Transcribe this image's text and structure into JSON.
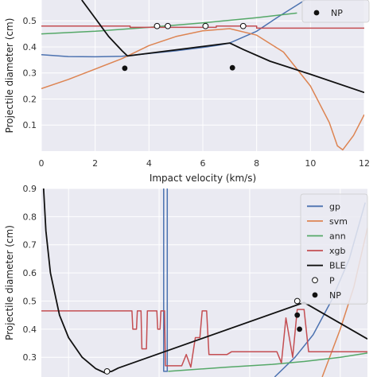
{
  "chart_data": [
    {
      "type": "line",
      "title": "",
      "xlabel": "Impact velocity (km/s)",
      "ylabel": "Projectile diameter (cm)",
      "xlim": [
        0,
        12
      ],
      "ylim": [
        0.0,
        0.58
      ],
      "xticks": [
        "0",
        "2",
        "4",
        "6",
        "8",
        "10",
        "12"
      ],
      "yticks": [
        "0.1",
        "0.2",
        "0.3",
        "0.4",
        "0.5"
      ],
      "grid": true,
      "background": "#eaeaf2",
      "legend_position": "top-right",
      "legend": [
        {
          "label": "NP",
          "marker": "filled-circle"
        }
      ],
      "series": [
        {
          "key": "gp",
          "color": "#4c72b0",
          "points": [
            [
              0,
              0.37
            ],
            [
              1,
              0.363
            ],
            [
              2,
              0.362
            ],
            [
              3,
              0.364
            ],
            [
              4,
              0.375
            ],
            [
              5,
              0.385
            ],
            [
              6,
              0.398
            ],
            [
              6.5,
              0.405
            ],
            [
              7,
              0.415
            ],
            [
              8,
              0.46
            ],
            [
              8.8,
              0.515
            ],
            [
              9.8,
              0.58
            ]
          ]
        },
        {
          "key": "svm",
          "color": "#dd8452",
          "points": [
            [
              0,
              0.24
            ],
            [
              1,
              0.275
            ],
            [
              2,
              0.315
            ],
            [
              3,
              0.355
            ],
            [
              4,
              0.405
            ],
            [
              5,
              0.44
            ],
            [
              6,
              0.462
            ],
            [
              7,
              0.47
            ],
            [
              8,
              0.445
            ],
            [
              9,
              0.38
            ],
            [
              10,
              0.25
            ],
            [
              10.7,
              0.11
            ],
            [
              11,
              0.02
            ],
            [
              11.2,
              0.005
            ],
            [
              11.6,
              0.06
            ],
            [
              12,
              0.14
            ]
          ]
        },
        {
          "key": "ann",
          "color": "#55a868",
          "points": [
            [
              0,
              0.45
            ],
            [
              2,
              0.46
            ],
            [
              4,
              0.475
            ],
            [
              6,
              0.492
            ],
            [
              8,
              0.512
            ],
            [
              9.5,
              0.53
            ]
          ]
        },
        {
          "key": "xgb",
          "color": "#c44e52",
          "points": [
            [
              0,
              0.48
            ],
            [
              3.3,
              0.48
            ],
            [
              3.3,
              0.475
            ],
            [
              6.5,
              0.475
            ],
            [
              6.5,
              0.48
            ],
            [
              8,
              0.48
            ],
            [
              8,
              0.472
            ],
            [
              12,
              0.472
            ]
          ]
        },
        {
          "key": "ble",
          "color": "#111111",
          "points": [
            [
              1.5,
              0.58
            ],
            [
              2,
              0.51
            ],
            [
              2.5,
              0.44
            ],
            [
              3,
              0.385
            ],
            [
              3.2,
              0.365
            ],
            [
              7,
              0.415
            ],
            [
              7.5,
              0.39
            ],
            [
              8.5,
              0.345
            ],
            [
              10,
              0.295
            ],
            [
              12,
              0.225
            ]
          ]
        }
      ],
      "markers": {
        "P": [
          [
            4.3,
            0.48
          ],
          [
            4.7,
            0.48
          ],
          [
            6.1,
            0.48
          ],
          [
            7.5,
            0.48
          ]
        ],
        "NP": [
          [
            3.1,
            0.318
          ],
          [
            7.1,
            0.32
          ]
        ]
      }
    },
    {
      "type": "line",
      "title": "",
      "xlabel": "",
      "ylabel": "Projectile diameter (cm)",
      "xlim": [
        1.4,
        8.6
      ],
      "ylim": [
        0.23,
        0.9
      ],
      "xticks": [],
      "yticks": [
        "0.3",
        "0.4",
        "0.5",
        "0.6",
        "0.7",
        "0.8",
        "0.9"
      ],
      "grid": true,
      "background": "#eaeaf2",
      "legend_position": "top-right",
      "legend": [
        {
          "label": "gp",
          "color": "#4c72b0",
          "marker": "line"
        },
        {
          "label": "svm",
          "color": "#dd8452",
          "marker": "line"
        },
        {
          "label": "ann",
          "color": "#55a868",
          "marker": "line"
        },
        {
          "label": "xgb",
          "color": "#c44e52",
          "marker": "line"
        },
        {
          "label": "BLE",
          "color": "#111111",
          "marker": "line"
        },
        {
          "label": "P",
          "marker": "open-circle"
        },
        {
          "label": "NP",
          "marker": "filled-circle"
        }
      ],
      "series": [
        {
          "key": "gp",
          "color": "#4c72b0",
          "points": [
            [
              4.1,
              0.9
            ],
            [
              4.1,
              0.25
            ],
            [
              4.18,
              0.25
            ],
            [
              4.18,
              0.9
            ]
          ]
        },
        {
          "key": "gp",
          "color": "#4c72b0",
          "points": [
            [
              6.55,
              0.23
            ],
            [
              7.0,
              0.3
            ],
            [
              7.4,
              0.38
            ],
            [
              7.8,
              0.5
            ],
            [
              8.2,
              0.65
            ],
            [
              8.55,
              0.85
            ]
          ]
        },
        {
          "key": "svm",
          "color": "#dd8452",
          "points": [
            [
              7.6,
              0.23
            ],
            [
              8.0,
              0.4
            ],
            [
              8.3,
              0.55
            ],
            [
              8.6,
              0.76
            ]
          ]
        },
        {
          "key": "ann",
          "color": "#55a868",
          "points": [
            [
              4.2,
              0.25
            ],
            [
              5.5,
              0.265
            ],
            [
              6.5,
              0.275
            ],
            [
              7.2,
              0.285
            ],
            [
              8.0,
              0.3
            ],
            [
              8.6,
              0.315
            ]
          ]
        },
        {
          "key": "xgb",
          "color": "#c44e52",
          "points": [
            [
              1.4,
              0.465
            ],
            [
              3.4,
              0.465
            ],
            [
              3.42,
              0.4
            ],
            [
              3.5,
              0.4
            ],
            [
              3.52,
              0.465
            ],
            [
              3.6,
              0.465
            ],
            [
              3.62,
              0.33
            ],
            [
              3.72,
              0.33
            ],
            [
              3.74,
              0.465
            ],
            [
              3.95,
              0.465
            ],
            [
              3.97,
              0.4
            ],
            [
              4.02,
              0.4
            ],
            [
              4.04,
              0.465
            ],
            [
              4.12,
              0.465
            ],
            [
              4.14,
              0.27
            ],
            [
              4.5,
              0.27
            ],
            [
              4.6,
              0.31
            ],
            [
              4.7,
              0.265
            ],
            [
              4.8,
              0.37
            ],
            [
              4.9,
              0.37
            ],
            [
              4.95,
              0.465
            ],
            [
              5.05,
              0.465
            ],
            [
              5.1,
              0.31
            ],
            [
              5.5,
              0.31
            ],
            [
              5.6,
              0.32
            ],
            [
              6.6,
              0.32
            ],
            [
              6.7,
              0.28
            ],
            [
              6.8,
              0.44
            ],
            [
              6.95,
              0.3
            ],
            [
              7.05,
              0.47
            ],
            [
              7.2,
              0.47
            ],
            [
              7.3,
              0.32
            ],
            [
              8.6,
              0.32
            ]
          ]
        },
        {
          "key": "ble",
          "color": "#111111",
          "points": [
            [
              1.45,
              0.9
            ],
            [
              1.5,
              0.75
            ],
            [
              1.6,
              0.6
            ],
            [
              1.8,
              0.45
            ],
            [
              2.0,
              0.37
            ],
            [
              2.3,
              0.3
            ],
            [
              2.6,
              0.26
            ],
            [
              2.8,
              0.245
            ],
            [
              2.95,
              0.25
            ],
            [
              3.1,
              0.262
            ],
            [
              7.2,
              0.495
            ],
            [
              8.6,
              0.365
            ]
          ]
        }
      ],
      "markers": {
        "P": [
          [
            2.85,
            0.25
          ],
          [
            7.05,
            0.5
          ]
        ],
        "NP": [
          [
            7.05,
            0.45
          ],
          [
            7.1,
            0.4
          ]
        ]
      }
    }
  ]
}
